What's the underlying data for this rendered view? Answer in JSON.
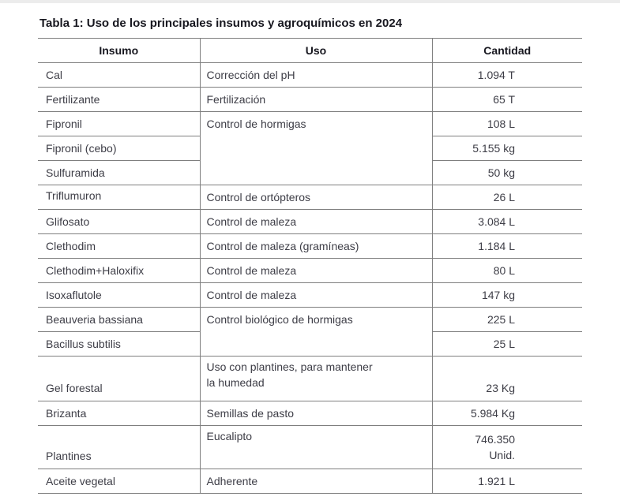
{
  "page": {
    "title": "Tabla 1: Uso de los principales insumos y agroquímicos en 2024"
  },
  "colors": {
    "border": "#7f7f7f",
    "body_text": "#3d3d46",
    "heading_text": "#17171f",
    "background": "#ffffff"
  },
  "table": {
    "headers": [
      "Insumo",
      "Uso",
      "Cantidad"
    ],
    "rows": [
      {
        "insumo": "Cal",
        "uso": "Corrección del pH",
        "cantidad": "1.094 T"
      },
      {
        "insumo": "Fertilizante",
        "uso": "Fertilización",
        "cantidad": "65 T"
      },
      {
        "insumo": "Fipronil",
        "uso": "Control de hormigas",
        "uso_rowspan": 3,
        "cantidad": "108 L"
      },
      {
        "insumo": "Fipronil (cebo)",
        "cantidad": "5.155 kg"
      },
      {
        "insumo": "Sulfuramida",
        "cantidad": "50 kg"
      },
      {
        "insumo": "Triflumuron",
        "uso": "Control de ortópteros",
        "cantidad": "26 L"
      },
      {
        "insumo": "Glifosato",
        "uso": "Control de maleza",
        "cantidad": "3.084 L"
      },
      {
        "insumo": "Clethodim",
        "uso": "Control de maleza (gramíneas)",
        "cantidad": "1.184 L"
      },
      {
        "insumo": "Clethodim+Haloxifix",
        "uso": "Control de maleza",
        "cantidad": "80 L"
      },
      {
        "insumo": "Isoxaflutole",
        "uso": "Control de maleza",
        "cantidad": "147 kg"
      },
      {
        "insumo": "Beauveria bassiana",
        "uso": "Control biológico de hormigas",
        "uso_rowspan": 2,
        "cantidad": "225 L"
      },
      {
        "insumo": "Bacillus subtilis",
        "cantidad": "25 L"
      },
      {
        "insumo": "Gel forestal",
        "uso": "Uso con plantines, para mantener\nla humedad",
        "cantidad": "23 Kg"
      },
      {
        "insumo": "Brizanta",
        "uso": "Semillas de pasto",
        "cantidad": "5.984 Kg"
      },
      {
        "insumo": "Plantines",
        "uso": "Eucalipto",
        "cantidad": "746.350\nUnid."
      },
      {
        "insumo": "Aceite vegetal",
        "uso": "Adherente",
        "cantidad": "1.921 L"
      }
    ]
  }
}
